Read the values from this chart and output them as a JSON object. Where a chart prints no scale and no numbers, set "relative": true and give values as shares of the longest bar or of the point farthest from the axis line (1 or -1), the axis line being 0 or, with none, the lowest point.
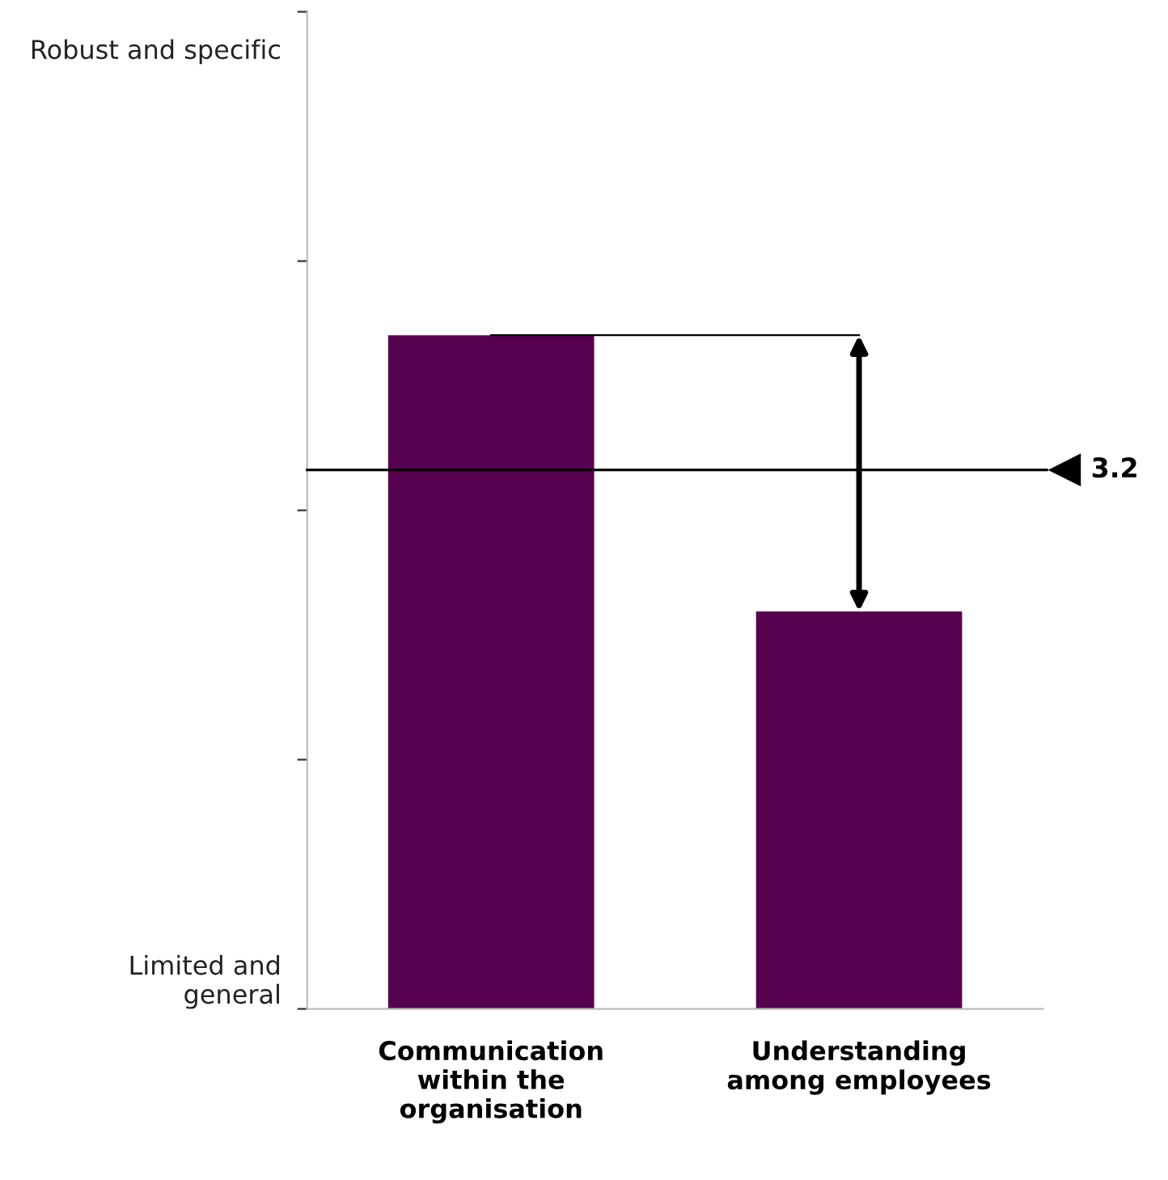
{
  "chart_data": {
    "type": "bar",
    "categories": [
      "Communication\nwithin the\norganisation",
      "Understanding\namong employees"
    ],
    "values": [
      1,
      0.59
    ],
    "color": "#560050",
    "relative": true,
    "annotations": [
      "Limited and\ngeneral",
      "Robust and specific",
      "3.2"
    ],
    "ref_lines": [
      {
        "axis": "y",
        "value": 0.8,
        "color": "#000000"
      }
    ],
    "grid": false,
    "legend": false
  }
}
